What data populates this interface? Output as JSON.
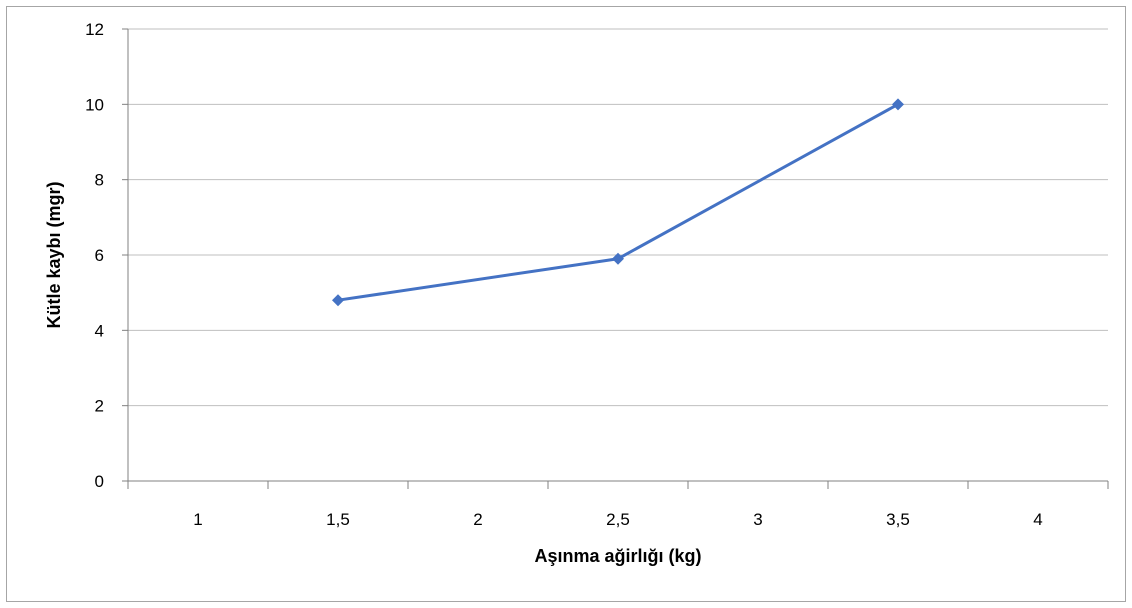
{
  "chart_data": {
    "type": "line",
    "categories": [
      "1",
      "1,5",
      "2",
      "2,5",
      "3",
      "3,5",
      "4"
    ],
    "series": [
      {
        "values": [
          null,
          4.8,
          null,
          5.9,
          null,
          10,
          null
        ]
      }
    ],
    "xlabel": "Aşınma ağirlığı (kg)",
    "ylabel": "Kütle kaybı (mgr)",
    "ylim": [
      0,
      12
    ],
    "yticks": [
      "0",
      "2",
      "4",
      "6",
      "8",
      "10",
      "12"
    ],
    "grid": "horizontal",
    "line_color": "#4472c4",
    "marker": "diamond"
  },
  "colors": {
    "gridline": "#bfbfbf",
    "axis": "#808080",
    "frame": "#a6a6a6"
  }
}
